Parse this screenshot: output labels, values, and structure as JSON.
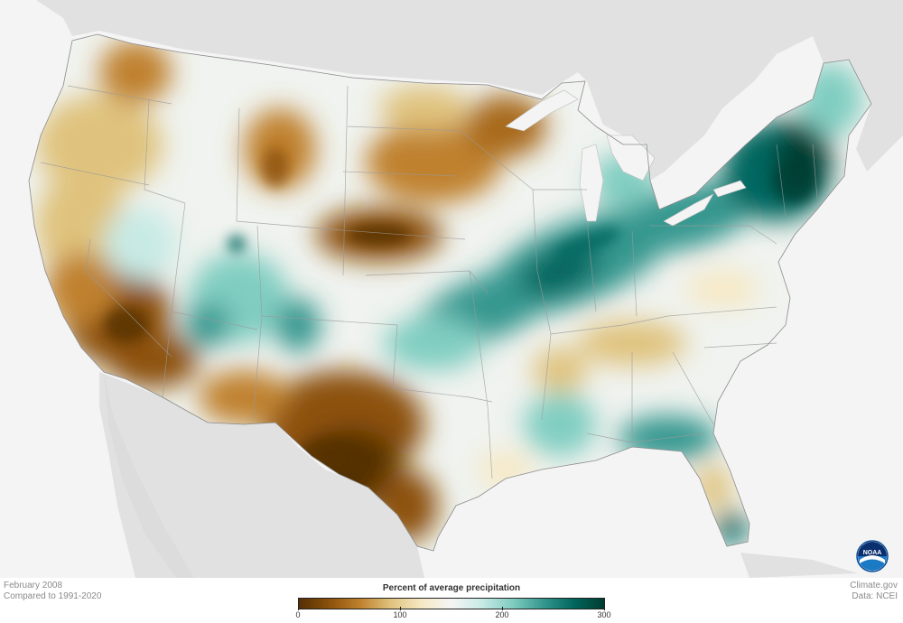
{
  "map": {
    "period": "February 2008",
    "baseline": "Compared to 1991-2020",
    "source_site": "Climate.gov",
    "source_data": "Data: NCEI",
    "logo_text": "NOAA"
  },
  "legend": {
    "title": "Percent of average precipitation",
    "ticks": [
      "0",
      "100",
      "200",
      "300"
    ],
    "colors": [
      "#543005",
      "#8c510a",
      "#bf812d",
      "#dfc27d",
      "#f6e8c3",
      "#f5f5f5",
      "#c7eae5",
      "#80cdc1",
      "#35978f",
      "#01665e",
      "#003c30"
    ]
  },
  "palette": {
    "ocean": "#f4f4f4",
    "land_outside": "#e1e1e1",
    "dry": "#8c510a",
    "very_dry": "#543005",
    "wet": "#35978f",
    "very_wet": "#01665e",
    "near_normal": "#f0f3ef",
    "noaa_blue": "#0a4b94"
  }
}
